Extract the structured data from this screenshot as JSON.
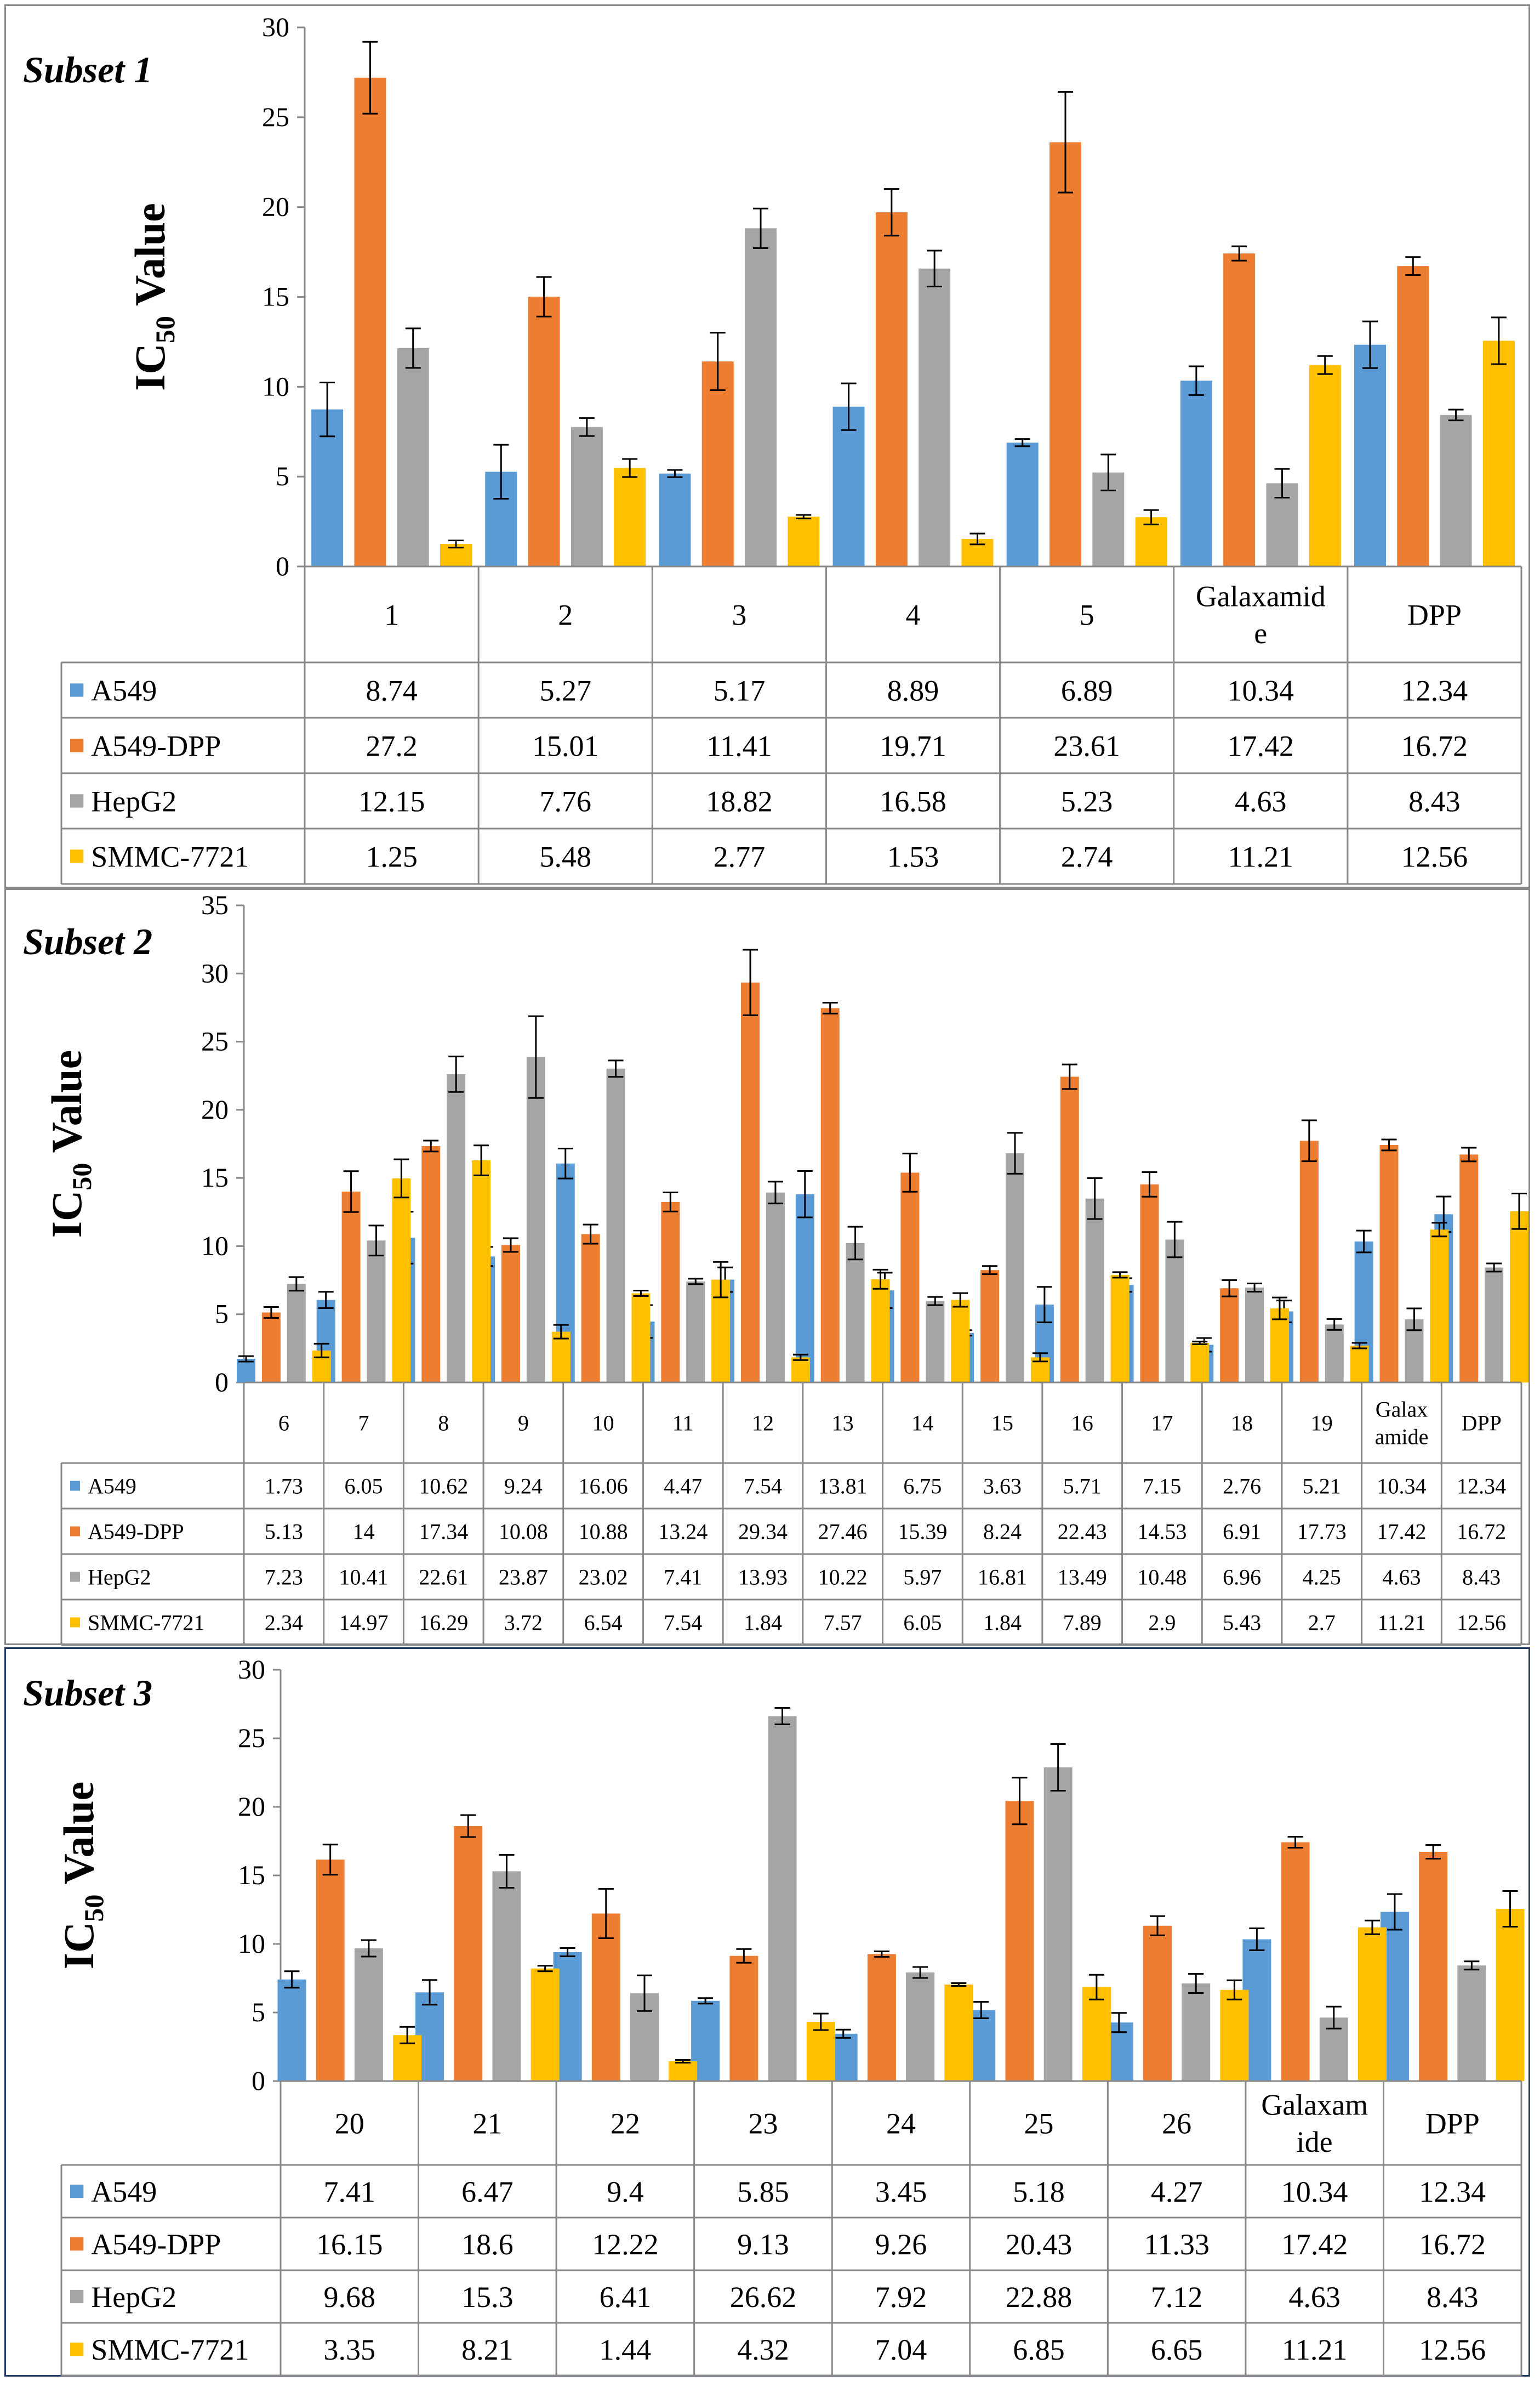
{
  "colors": {
    "A549": "#5b9bd5",
    "A549-DPP": "#ed7d31",
    "HepG2": "#a5a5a5",
    "SMMC-7721": "#ffc000"
  },
  "chart_data": [
    {
      "type": "bar",
      "title": "Subset 1",
      "ylabel_main": "IC",
      "ylabel_sub": "50",
      "ylabel_rest": " Value",
      "ylim": [
        0,
        30
      ],
      "yticks": [
        0,
        5,
        10,
        15,
        20,
        25,
        30
      ],
      "categories": [
        "1",
        "2",
        "3",
        "4",
        "5",
        "Galaxamide",
        "DPP"
      ],
      "category_lines": [
        [
          "1"
        ],
        [
          "2"
        ],
        [
          "3"
        ],
        [
          "4"
        ],
        [
          "5"
        ],
        [
          "Galaxamid",
          "e"
        ],
        [
          "DPP"
        ]
      ],
      "series": [
        {
          "name": "A549",
          "values": [
            8.74,
            5.27,
            5.17,
            8.89,
            6.89,
            10.34,
            12.34
          ]
        },
        {
          "name": "A549-DPP",
          "values": [
            27.2,
            15.01,
            11.41,
            19.71,
            23.61,
            17.42,
            16.72
          ]
        },
        {
          "name": "HepG2",
          "values": [
            12.15,
            7.76,
            18.82,
            16.58,
            5.23,
            4.63,
            8.43
          ]
        },
        {
          "name": "SMMC-7721",
          "values": [
            1.25,
            5.48,
            2.77,
            1.53,
            2.74,
            11.21,
            12.56
          ]
        }
      ],
      "errors": [
        [
          1.5,
          1.5,
          0.2,
          1.3,
          0.2,
          0.8,
          1.3
        ],
        [
          2.0,
          1.1,
          1.6,
          1.3,
          2.8,
          0.4,
          0.5
        ],
        [
          1.1,
          0.5,
          1.1,
          1.0,
          1.0,
          0.8,
          0.3
        ],
        [
          0.2,
          0.5,
          0.1,
          0.3,
          0.4,
          0.5,
          1.3
        ]
      ]
    },
    {
      "type": "bar",
      "title": "Subset 2",
      "ylabel_main": "IC",
      "ylabel_sub": "50",
      "ylabel_rest": " Value",
      "ylim": [
        0,
        35
      ],
      "yticks": [
        0,
        5,
        10,
        15,
        20,
        25,
        30,
        35
      ],
      "categories": [
        "6",
        "7",
        "8",
        "9",
        "10",
        "11",
        "12",
        "13",
        "14",
        "15",
        "16",
        "17",
        "18",
        "19",
        "Galaxamide",
        "DPP"
      ],
      "category_lines": [
        [
          "6"
        ],
        [
          "7"
        ],
        [
          "8"
        ],
        [
          "9"
        ],
        [
          "10"
        ],
        [
          "11"
        ],
        [
          "12"
        ],
        [
          "13"
        ],
        [
          "14"
        ],
        [
          "15"
        ],
        [
          "16"
        ],
        [
          "17"
        ],
        [
          "18"
        ],
        [
          "19"
        ],
        [
          "Galax",
          "amide"
        ],
        [
          "DPP"
        ]
      ],
      "series": [
        {
          "name": "A549",
          "values": [
            1.73,
            6.05,
            10.62,
            9.24,
            16.06,
            4.47,
            7.54,
            13.81,
            6.75,
            3.63,
            5.71,
            7.15,
            2.76,
            5.21,
            10.34,
            12.34
          ]
        },
        {
          "name": "A549-DPP",
          "values": [
            5.13,
            14,
            17.34,
            10.08,
            10.88,
            13.24,
            29.34,
            27.46,
            15.39,
            8.24,
            22.43,
            14.53,
            6.91,
            17.73,
            17.42,
            16.72
          ]
        },
        {
          "name": "HepG2",
          "values": [
            7.23,
            10.41,
            22.61,
            23.87,
            23.02,
            7.41,
            13.93,
            10.22,
            5.97,
            16.81,
            13.49,
            10.48,
            6.96,
            4.25,
            4.63,
            8.43
          ]
        },
        {
          "name": "SMMC-7721",
          "values": [
            2.34,
            14.97,
            16.29,
            3.72,
            6.54,
            7.54,
            1.84,
            7.57,
            6.05,
            1.84,
            7.89,
            2.9,
            5.43,
            2.7,
            11.21,
            12.56
          ]
        }
      ],
      "errors": [
        [
          0.2,
          0.6,
          1.9,
          0.7,
          1.1,
          1.2,
          0.9,
          1.7,
          1.3,
          0.2,
          1.3,
          0.5,
          0.5,
          0.8,
          0.8,
          1.3
        ],
        [
          0.4,
          1.5,
          0.4,
          0.5,
          0.7,
          0.7,
          2.4,
          0.4,
          1.4,
          0.3,
          0.9,
          0.9,
          0.6,
          1.5,
          0.4,
          0.5
        ],
        [
          0.5,
          1.1,
          1.3,
          3.0,
          0.6,
          0.2,
          0.8,
          1.2,
          0.3,
          1.5,
          1.5,
          1.3,
          0.3,
          0.4,
          0.8,
          0.3
        ],
        [
          0.5,
          1.4,
          1.1,
          0.5,
          0.2,
          1.3,
          0.2,
          0.7,
          0.5,
          0.3,
          0.2,
          0.1,
          0.8,
          0.2,
          0.5,
          1.3
        ]
      ]
    },
    {
      "type": "bar",
      "title": "Subset 3",
      "ylabel_main": "IC",
      "ylabel_sub": "50",
      "ylabel_rest": " Value",
      "ylim": [
        0,
        30
      ],
      "yticks": [
        0,
        5,
        10,
        15,
        20,
        25,
        30
      ],
      "categories": [
        "20",
        "21",
        "22",
        "23",
        "24",
        "25",
        "26",
        "Galaxamide",
        "DPP"
      ],
      "category_lines": [
        [
          "20"
        ],
        [
          "21"
        ],
        [
          "22"
        ],
        [
          "23"
        ],
        [
          "24"
        ],
        [
          "25"
        ],
        [
          "26"
        ],
        [
          "Galaxam",
          "ide"
        ],
        [
          "DPP"
        ]
      ],
      "series": [
        {
          "name": "A549",
          "values": [
            7.41,
            6.47,
            9.4,
            5.85,
            3.45,
            5.18,
            4.27,
            10.34,
            12.34
          ]
        },
        {
          "name": "A549-DPP",
          "values": [
            16.15,
            18.6,
            12.22,
            9.13,
            9.26,
            20.43,
            11.33,
            17.42,
            16.72
          ]
        },
        {
          "name": "HepG2",
          "values": [
            9.68,
            15.3,
            6.41,
            26.62,
            7.92,
            22.88,
            7.12,
            4.63,
            8.43
          ]
        },
        {
          "name": "SMMC-7721",
          "values": [
            3.35,
            8.21,
            1.44,
            4.32,
            7.04,
            6.85,
            6.65,
            11.21,
            12.56
          ]
        }
      ],
      "errors": [
        [
          0.6,
          0.9,
          0.3,
          0.2,
          0.3,
          0.6,
          0.7,
          0.8,
          1.3
        ],
        [
          1.1,
          0.8,
          1.8,
          0.5,
          0.2,
          1.7,
          0.7,
          0.4,
          0.5
        ],
        [
          0.6,
          1.2,
          1.3,
          0.6,
          0.4,
          1.7,
          0.7,
          0.8,
          0.3
        ],
        [
          0.6,
          0.2,
          0.1,
          0.6,
          0.1,
          0.9,
          0.7,
          0.5,
          1.3
        ]
      ]
    }
  ]
}
